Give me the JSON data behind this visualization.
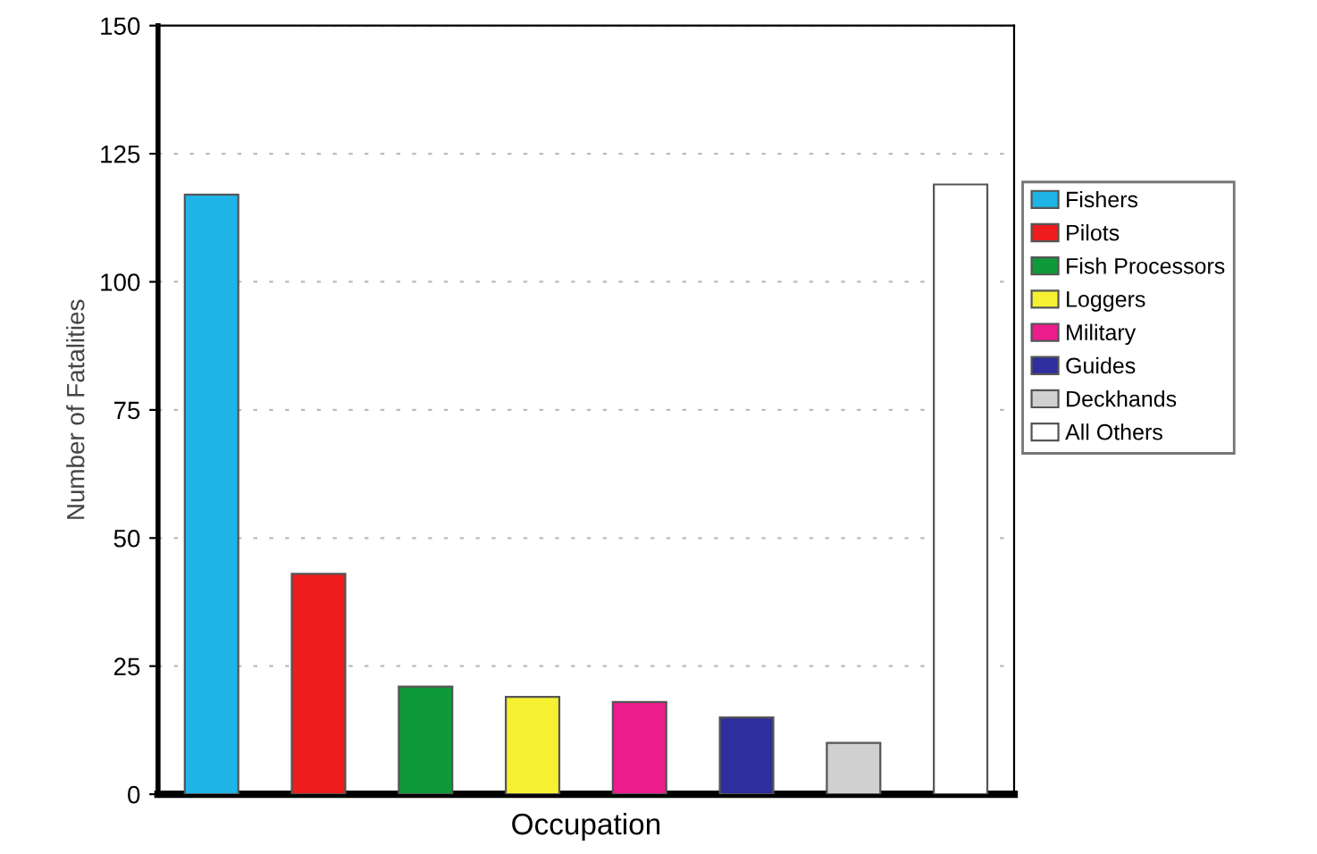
{
  "chart_data": {
    "type": "bar",
    "xlabel": "Occupation",
    "ylabel": "Number of Fatalities",
    "categories": [
      null,
      null,
      null,
      null,
      null,
      null,
      null,
      null
    ],
    "series": [
      {
        "name": "Fishers",
        "color": "#1eb4e6",
        "values": [
          117,
          null,
          null,
          null,
          null,
          null,
          null,
          null
        ]
      },
      {
        "name": "Pilots",
        "color": "#ee1c1c",
        "values": [
          null,
          43,
          null,
          null,
          null,
          null,
          null,
          null
        ]
      },
      {
        "name": "Fish Processors",
        "color": "#0f9a3a",
        "values": [
          null,
          null,
          21,
          null,
          null,
          null,
          null,
          null
        ]
      },
      {
        "name": "Loggers",
        "color": "#f5f032",
        "values": [
          null,
          null,
          null,
          19,
          null,
          null,
          null,
          null
        ]
      },
      {
        "name": "Military",
        "color": "#ec1c8c",
        "values": [
          null,
          null,
          null,
          null,
          18,
          null,
          null,
          null
        ]
      },
      {
        "name": "Guides",
        "color": "#2e2e9e",
        "values": [
          null,
          null,
          null,
          null,
          null,
          15,
          null,
          null
        ]
      },
      {
        "name": "Deckhands",
        "color": "#d0d0d0",
        "values": [
          null,
          null,
          null,
          null,
          null,
          null,
          10,
          null
        ]
      },
      {
        "name": "All Others",
        "color": "#ffffff",
        "values": [
          null,
          null,
          null,
          null,
          null,
          null,
          null,
          119
        ]
      }
    ],
    "ylim": [
      0,
      150
    ],
    "yticks": [
      0,
      25,
      50,
      75,
      100,
      125,
      150
    ],
    "grid": "y",
    "legend": "right"
  }
}
